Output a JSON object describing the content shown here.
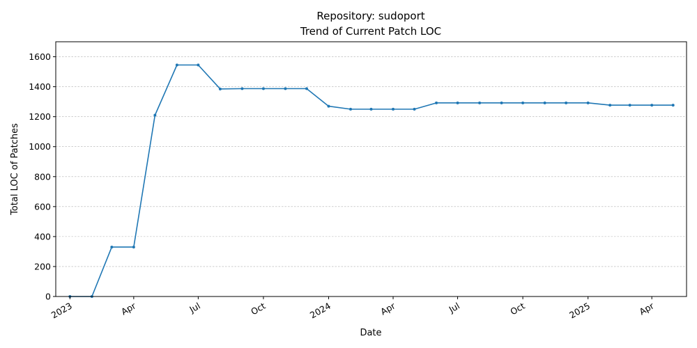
{
  "chart_data": {
    "type": "line",
    "title_lines": [
      "Repository: sudoport",
      "Trend of Current Patch LOC"
    ],
    "xlabel": "Date",
    "ylabel": "Total LOC of Patches",
    "x_ticks": [
      "2023",
      "Apr",
      "Jul",
      "Oct",
      "2024",
      "Apr",
      "Jul",
      "Oct",
      "2025",
      "Apr"
    ],
    "y_ticks": [
      0,
      200,
      400,
      600,
      800,
      1000,
      1200,
      1400,
      1600
    ],
    "ylim": [
      0,
      1700
    ],
    "xlim": [
      "2022-12-12",
      "2025-05-20"
    ],
    "grid": "horizontal-dashed",
    "color": "#1f77b4",
    "x": [
      "2023-01-01",
      "2023-02-01",
      "2023-03-01",
      "2023-04-01",
      "2023-05-01",
      "2023-06-01",
      "2023-07-01",
      "2023-08-01",
      "2023-09-01",
      "2023-10-01",
      "2023-11-01",
      "2023-12-01",
      "2024-01-01",
      "2024-02-01",
      "2024-03-01",
      "2024-04-01",
      "2024-05-01",
      "2024-06-01",
      "2024-07-01",
      "2024-08-01",
      "2024-09-01",
      "2024-10-01",
      "2024-11-01",
      "2024-12-01",
      "2025-01-01",
      "2025-02-01",
      "2025-03-01",
      "2025-04-01",
      "2025-05-01"
    ],
    "values": [
      0,
      0,
      330,
      330,
      1210,
      1545,
      1545,
      1385,
      1387,
      1387,
      1387,
      1387,
      1270,
      1250,
      1250,
      1250,
      1250,
      1292,
      1292,
      1292,
      1292,
      1292,
      1292,
      1292,
      1292,
      1277,
      1277,
      1277,
      1277
    ]
  }
}
